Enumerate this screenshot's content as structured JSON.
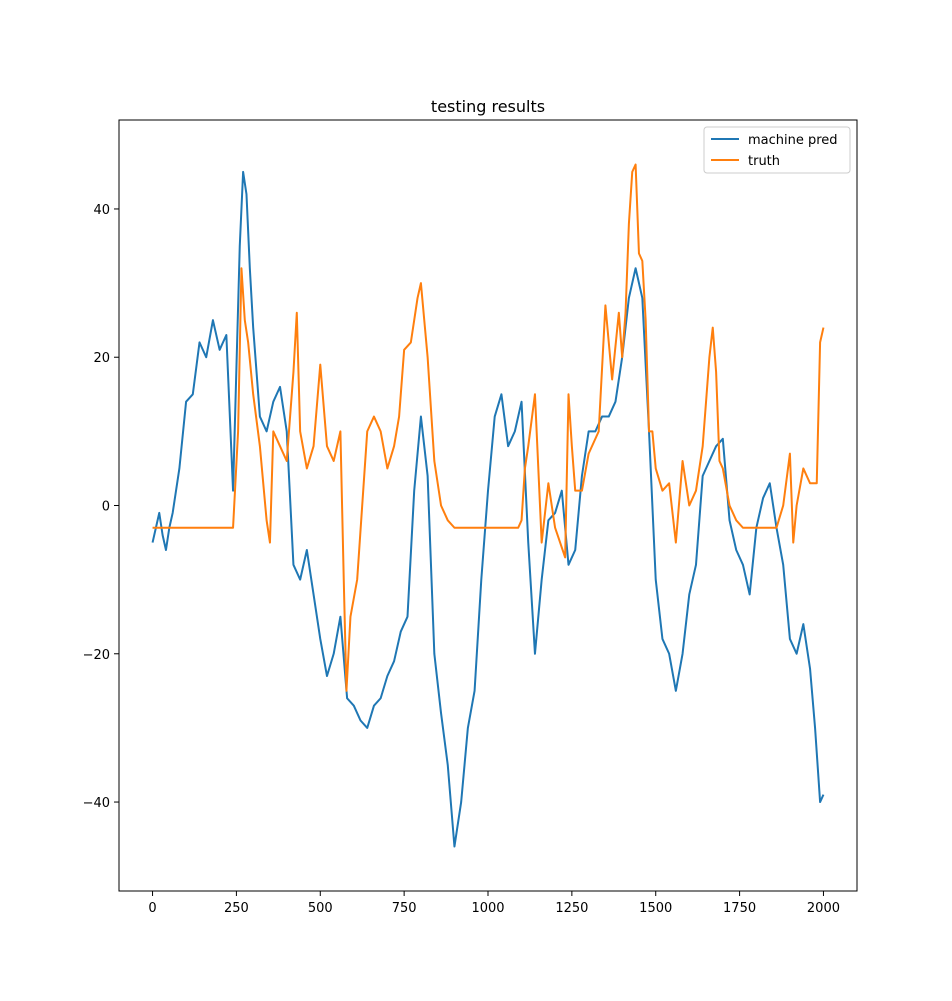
{
  "chart_data": {
    "type": "line",
    "title": "testing results",
    "xlabel": "",
    "ylabel": "",
    "xlim": [
      -100,
      2100
    ],
    "ylim": [
      -52,
      52
    ],
    "xticks": [
      0,
      250,
      500,
      750,
      1000,
      1250,
      1500,
      1750,
      2000
    ],
    "yticks": [
      -40,
      -20,
      0,
      20,
      40
    ],
    "xtick_labels": [
      "0",
      "250",
      "500",
      "750",
      "1000",
      "1250",
      "1500",
      "1750",
      "2000"
    ],
    "ytick_labels": [
      "−40",
      "−20",
      "0",
      "20",
      "40"
    ],
    "grid": false,
    "legend": "top-right",
    "series": [
      {
        "name": "machine pred",
        "color": "#1f77b4",
        "x": [
          0,
          10,
          20,
          30,
          40,
          50,
          60,
          80,
          100,
          120,
          140,
          160,
          180,
          200,
          220,
          240,
          260,
          270,
          280,
          290,
          300,
          320,
          340,
          360,
          380,
          400,
          420,
          440,
          460,
          480,
          500,
          520,
          540,
          560,
          580,
          600,
          620,
          640,
          660,
          680,
          700,
          720,
          740,
          760,
          780,
          800,
          820,
          840,
          860,
          880,
          900,
          920,
          940,
          960,
          980,
          1000,
          1020,
          1040,
          1060,
          1080,
          1100,
          1120,
          1140,
          1160,
          1180,
          1200,
          1220,
          1240,
          1260,
          1280,
          1300,
          1320,
          1340,
          1360,
          1380,
          1400,
          1420,
          1440,
          1460,
          1480,
          1500,
          1520,
          1540,
          1560,
          1580,
          1600,
          1620,
          1640,
          1660,
          1680,
          1700,
          1720,
          1740,
          1760,
          1780,
          1800,
          1820,
          1840,
          1860,
          1880,
          1900,
          1920,
          1940,
          1960,
          1975,
          1990,
          2000
        ],
        "values": [
          -5,
          -3,
          -1,
          -4,
          -6,
          -3,
          -1,
          5,
          14,
          15,
          22,
          20,
          25,
          21,
          23,
          2,
          35,
          45,
          42,
          32,
          24,
          12,
          10,
          14,
          16,
          10,
          -8,
          -10,
          -6,
          -12,
          -18,
          -23,
          -20,
          -15,
          -26,
          -27,
          -29,
          -30,
          -27,
          -26,
          -23,
          -21,
          -17,
          -15,
          2,
          12,
          4,
          -20,
          -28,
          -35,
          -46,
          -40,
          -30,
          -25,
          -10,
          2,
          12,
          15,
          8,
          10,
          14,
          -5,
          -20,
          -10,
          -2,
          -1,
          2,
          -8,
          -6,
          4,
          10,
          10,
          12,
          12,
          14,
          20,
          28,
          32,
          28,
          10,
          -10,
          -18,
          -20,
          -25,
          -20,
          -12,
          -8,
          4,
          6,
          8,
          9,
          -2,
          -6,
          -8,
          -12,
          -3,
          1,
          3,
          -3,
          -8,
          -18,
          -20,
          -16,
          -22,
          -30,
          -40,
          -39
        ]
      },
      {
        "name": "truth",
        "color": "#ff7f0e",
        "x": [
          0,
          50,
          100,
          150,
          200,
          240,
          255,
          265,
          275,
          285,
          300,
          320,
          340,
          350,
          360,
          380,
          400,
          420,
          430,
          440,
          460,
          480,
          500,
          520,
          540,
          560,
          570,
          578,
          590,
          610,
          640,
          660,
          680,
          700,
          720,
          735,
          750,
          770,
          790,
          800,
          810,
          820,
          840,
          860,
          880,
          900,
          950,
          1000,
          1050,
          1090,
          1100,
          1110,
          1120,
          1140,
          1160,
          1180,
          1200,
          1230,
          1240,
          1250,
          1260,
          1280,
          1300,
          1330,
          1350,
          1370,
          1390,
          1400,
          1410,
          1420,
          1430,
          1440,
          1450,
          1460,
          1470,
          1480,
          1490,
          1500,
          1520,
          1540,
          1560,
          1580,
          1600,
          1620,
          1640,
          1660,
          1670,
          1680,
          1690,
          1700,
          1720,
          1740,
          1760,
          1800,
          1860,
          1880,
          1900,
          1910,
          1920,
          1940,
          1960,
          1980,
          1990,
          2000
        ],
        "values": [
          -3,
          -3,
          -3,
          -3,
          -3,
          -3,
          10,
          32,
          25,
          22,
          15,
          8,
          -2,
          -5,
          10,
          8,
          6,
          18,
          26,
          10,
          5,
          8,
          19,
          8,
          6,
          10,
          -10,
          -25,
          -15,
          -10,
          10,
          12,
          10,
          5,
          8,
          12,
          21,
          22,
          28,
          30,
          25,
          20,
          6,
          0,
          -2,
          -3,
          -3,
          -3,
          -3,
          -3,
          -2,
          5,
          8,
          15,
          -5,
          3,
          -3,
          -7,
          15,
          8,
          2,
          2,
          7,
          10,
          27,
          17,
          26,
          20,
          26,
          38,
          45,
          46,
          34,
          33,
          25,
          10,
          10,
          5,
          2,
          3,
          -5,
          6,
          0,
          2,
          8,
          20,
          24,
          18,
          6,
          5,
          0,
          -2,
          -3,
          -3,
          -3,
          0,
          7,
          -5,
          0,
          5,
          3,
          3,
          22,
          24
        ]
      }
    ]
  }
}
